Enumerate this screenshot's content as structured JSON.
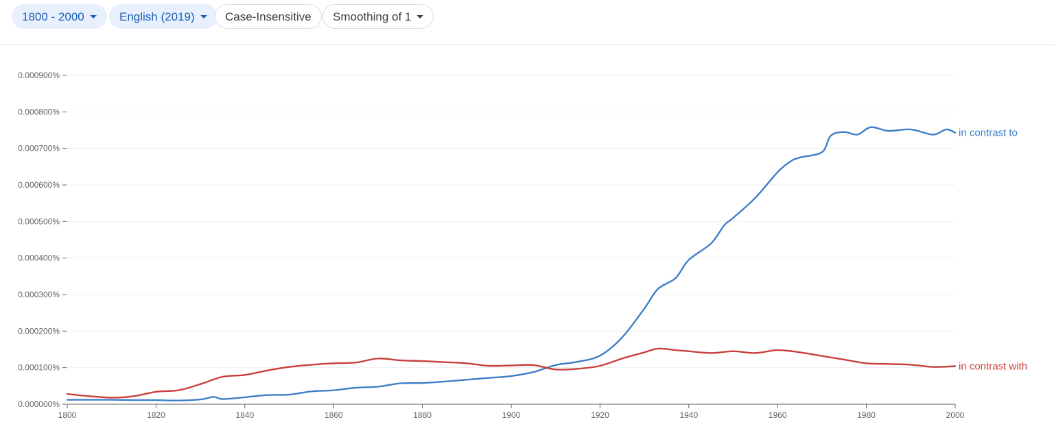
{
  "toolbar": {
    "year_range": "1800 - 2000",
    "corpus": "English (2019)",
    "case": "Case-Insensitive",
    "smoothing": "Smoothing of 1"
  },
  "colors": {
    "blue": "#3d7ec8",
    "red": "#c9403c",
    "grid": "#eeeeee"
  },
  "chart_data": {
    "type": "line",
    "title": "",
    "xlabel": "",
    "ylabel": "",
    "xlim": [
      1800,
      2000
    ],
    "ylim": [
      0,
      0.0009
    ],
    "grid": true,
    "x_ticks": [
      1800,
      1820,
      1840,
      1860,
      1880,
      1900,
      1920,
      1940,
      1960,
      1980,
      2000
    ],
    "x_tick_labels": [
      "1800",
      "1820",
      "1840",
      "1860",
      "1880",
      "1900",
      "1920",
      "1940",
      "1960",
      "1980",
      "2000"
    ],
    "y_ticks": [
      0,
      0.0001,
      0.0002,
      0.0003,
      0.0004,
      0.0005,
      0.0006,
      0.0007,
      0.0008,
      0.0009
    ],
    "y_tick_labels": [
      "0.000000%",
      "0.000100%",
      "0.000200%",
      "0.000300%",
      "0.000400%",
      "0.000500%",
      "0.000600%",
      "0.000700%",
      "0.000800%",
      "0.000900%"
    ],
    "series": [
      {
        "name": "in contrast to",
        "color": "#3d7ec8",
        "x": [
          1800,
          1805,
          1810,
          1815,
          1820,
          1825,
          1830,
          1833,
          1835,
          1840,
          1845,
          1850,
          1855,
          1860,
          1865,
          1870,
          1875,
          1880,
          1885,
          1890,
          1895,
          1900,
          1905,
          1910,
          1915,
          1920,
          1925,
          1930,
          1933,
          1937,
          1940,
          1945,
          1948,
          1950,
          1955,
          1960,
          1963,
          1965,
          1970,
          1972,
          1975,
          1978,
          1981,
          1985,
          1990,
          1995,
          1998,
          2000
        ],
        "values": [
          1.2e-05,
          1.2e-05,
          1.2e-05,
          1.1e-05,
          1.1e-05,
          1e-05,
          1.3e-05,
          2e-05,
          1.4e-05,
          1.9e-05,
          2.5e-05,
          2.6e-05,
          3.5e-05,
          3.8e-05,
          4.5e-05,
          4.8e-05,
          5.7e-05,
          5.8e-05,
          6.2e-05,
          6.7e-05,
          7.2e-05,
          7.7e-05,
          8.8e-05,
          0.000107,
          0.000116,
          0.000133,
          0.000183,
          0.000262,
          0.000315,
          0.000345,
          0.000395,
          0.00044,
          0.00049,
          0.00051,
          0.000565,
          0.000635,
          0.000665,
          0.000675,
          0.00069,
          0.000735,
          0.000745,
          0.000738,
          0.000758,
          0.000748,
          0.000752,
          0.000738,
          0.000752,
          0.000743
        ]
      },
      {
        "name": "in contrast with",
        "color": "#c9403c",
        "x": [
          1800,
          1805,
          1810,
          1815,
          1820,
          1825,
          1830,
          1835,
          1840,
          1845,
          1850,
          1855,
          1860,
          1865,
          1870,
          1875,
          1880,
          1885,
          1890,
          1895,
          1900,
          1905,
          1910,
          1915,
          1920,
          1925,
          1930,
          1933,
          1937,
          1940,
          1945,
          1950,
          1955,
          1960,
          1965,
          1970,
          1975,
          1980,
          1985,
          1990,
          1995,
          2000
        ],
        "values": [
          2.8e-05,
          2.2e-05,
          1.8e-05,
          2.2e-05,
          3.4e-05,
          3.8e-05,
          5.5e-05,
          7.5e-05,
          8e-05,
          9.2e-05,
          0.000102,
          0.000108,
          0.000112,
          0.000114,
          0.000125,
          0.00012,
          0.000118,
          0.000115,
          0.000112,
          0.000105,
          0.000106,
          0.000107,
          9.5e-05,
          9.7e-05,
          0.000105,
          0.000125,
          0.000142,
          0.000152,
          0.000148,
          0.000145,
          0.00014,
          0.000145,
          0.00014,
          0.000148,
          0.000142,
          0.000132,
          0.000122,
          0.000112,
          0.00011,
          0.000108,
          0.000102,
          0.000104
        ]
      }
    ]
  }
}
